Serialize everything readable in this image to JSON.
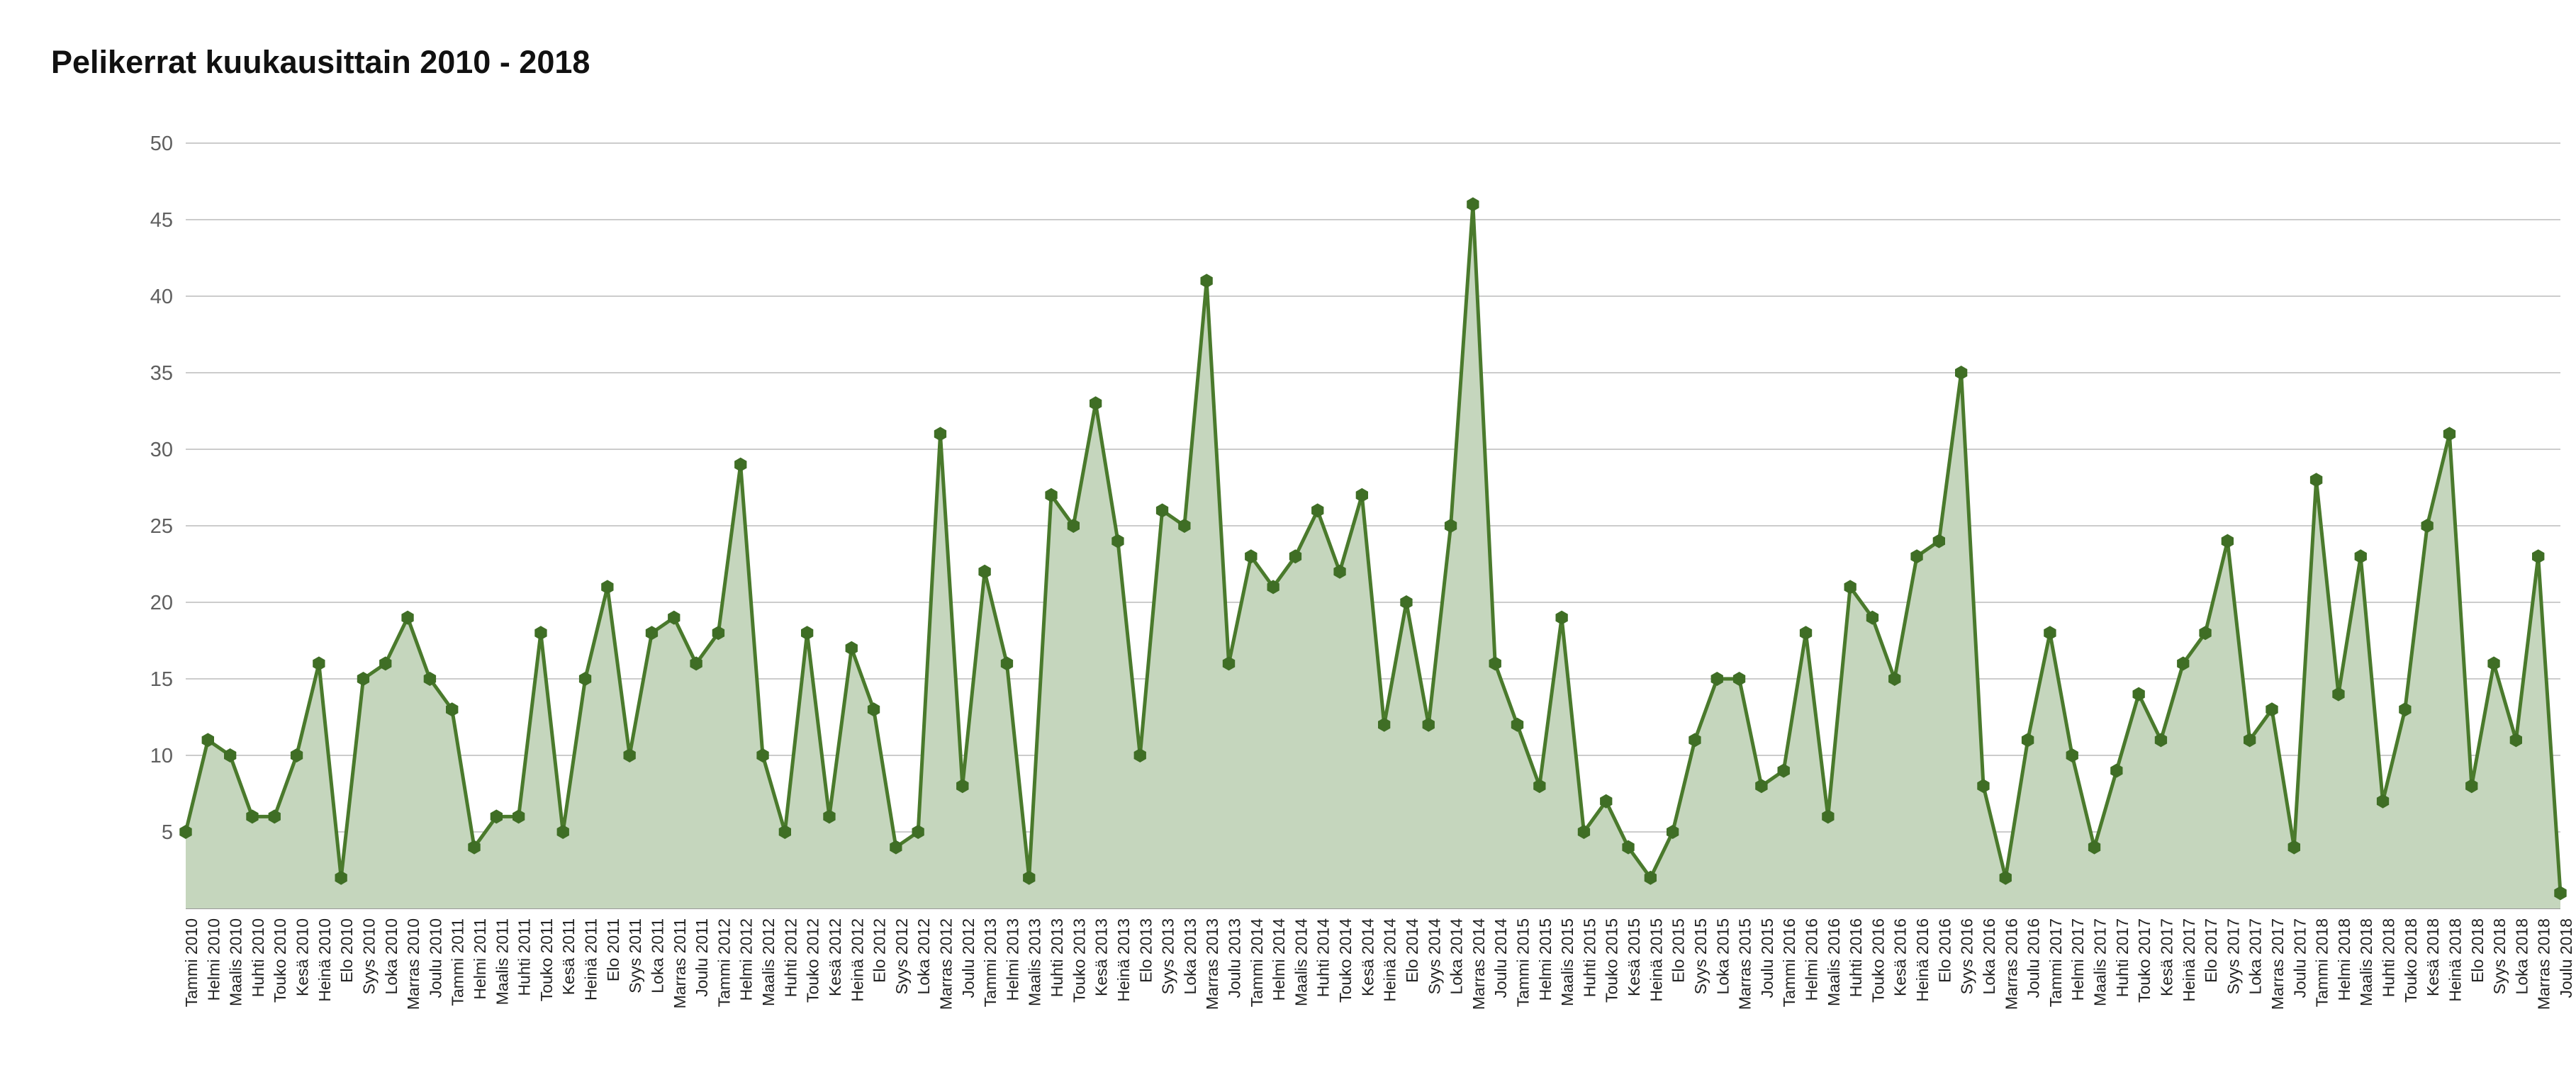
{
  "chart_data": {
    "type": "area",
    "title": "Pelikerrat kuukausittain 2010 - 2018",
    "xlabel": "",
    "ylabel": "",
    "ylim": [
      0,
      50
    ],
    "yticks": [
      5,
      10,
      15,
      20,
      25,
      30,
      35,
      40,
      45,
      50
    ],
    "grid": true,
    "legend": "none",
    "colors": {
      "line": "#4a7a2c",
      "fill": "#c5d6bd",
      "marker": "#3f6e25",
      "grid": "#cccccc"
    },
    "categories": [
      "Tammi 2010",
      "Helmi 2010",
      "Maalis 2010",
      "Huhti 2010",
      "Touko 2010",
      "Kesä 2010",
      "Heinä 2010",
      "Elo 2010",
      "Syys 2010",
      "Loka 2010",
      "Marras 2010",
      "Joulu 2010",
      "Tammi 2011",
      "Helmi 2011",
      "Maalis 2011",
      "Huhti 2011",
      "Touko 2011",
      "Kesä 2011",
      "Heinä 2011",
      "Elo 2011",
      "Syys 2011",
      "Loka 2011",
      "Marras 2011",
      "Joulu 2011",
      "Tammi 2012",
      "Helmi 2012",
      "Maalis 2012",
      "Huhti 2012",
      "Touko 2012",
      "Kesä 2012",
      "Heinä 2012",
      "Elo 2012",
      "Syys 2012",
      "Loka 2012",
      "Marras 2012",
      "Joulu 2012",
      "Tammi 2013",
      "Helmi 2013",
      "Maalis 2013",
      "Huhti 2013",
      "Touko 2013",
      "Kesä 2013",
      "Heinä 2013",
      "Elo 2013",
      "Syys 2013",
      "Loka 2013",
      "Marras 2013",
      "Joulu 2013",
      "Tammi 2014",
      "Helmi 2014",
      "Maalis 2014",
      "Huhti 2014",
      "Touko 2014",
      "Kesä 2014",
      "Heinä 2014",
      "Elo 2014",
      "Syys 2014",
      "Loka 2014",
      "Marras 2014",
      "Joulu 2014",
      "Tammi 2015",
      "Helmi 2015",
      "Maalis 2015",
      "Huhti 2015",
      "Touko 2015",
      "Kesä 2015",
      "Heinä 2015",
      "Elo 2015",
      "Syys 2015",
      "Loka 2015",
      "Marras 2015",
      "Joulu 2015",
      "Tammi 2016",
      "Helmi 2016",
      "Maalis 2016",
      "Huhti 2016",
      "Touko 2016",
      "Kesä 2016",
      "Heinä 2016",
      "Elo 2016",
      "Syys 2016",
      "Loka 2016",
      "Marras 2016",
      "Joulu 2016",
      "Tammi 2017",
      "Helmi 2017",
      "Maalis 2017",
      "Huhti 2017",
      "Touko 2017",
      "Kesä 2017",
      "Heinä 2017",
      "Elo 2017",
      "Syys 2017",
      "Loka 2017",
      "Marras 2017",
      "Joulu 2017",
      "Tammi 2018",
      "Helmi 2018",
      "Maalis 2018",
      "Huhti 2018",
      "Touko 2018",
      "Kesä 2018",
      "Heinä 2018",
      "Elo 2018",
      "Syys 2018",
      "Loka 2018",
      "Marras 2018",
      "Joulu 2018"
    ],
    "values": [
      5,
      11,
      10,
      6,
      6,
      10,
      16,
      2,
      15,
      16,
      19,
      15,
      13,
      4,
      6,
      6,
      18,
      5,
      15,
      21,
      10,
      18,
      19,
      16,
      18,
      29,
      10,
      5,
      18,
      6,
      17,
      13,
      4,
      5,
      31,
      8,
      22,
      16,
      2,
      27,
      25,
      33,
      24,
      10,
      26,
      25,
      41,
      16,
      23,
      21,
      23,
      26,
      22,
      27,
      12,
      20,
      12,
      25,
      46,
      16,
      12,
      8,
      19,
      5,
      7,
      4,
      2,
      5,
      11,
      15,
      15,
      8,
      9,
      18,
      6,
      21,
      19,
      15,
      23,
      24,
      35,
      8,
      2,
      11,
      18,
      10,
      4,
      9,
      14,
      11,
      16,
      18,
      24,
      11,
      13,
      4,
      28,
      14,
      23,
      7,
      13,
      25,
      31,
      8,
      16,
      11,
      23,
      1
    ]
  }
}
